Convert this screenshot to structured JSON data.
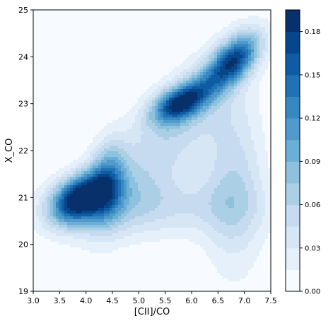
{
  "chart_data": {
    "type": "heatmap",
    "subtype": "kde-filled-contour",
    "xlabel": "[CII]/CO",
    "ylabel": "X_CO",
    "xlim": [
      3.0,
      7.5
    ],
    "ylim": [
      19,
      25
    ],
    "x_ticks": [
      "3.0",
      "3.5",
      "4.0",
      "4.5",
      "5.0",
      "5.5",
      "6.0",
      "6.5",
      "7.0",
      "7.5"
    ],
    "y_ticks": [
      "19",
      "20",
      "21",
      "22",
      "23",
      "24",
      "25"
    ],
    "colorbar": {
      "colormap": "Blues",
      "range": [
        0.0,
        0.195
      ],
      "tick_values": [
        0.0,
        0.03,
        0.06,
        0.09,
        0.12,
        0.15,
        0.18
      ],
      "tick_labels": [
        "0.00",
        "0.03",
        "0.06",
        "0.09",
        "0.12",
        "0.15",
        "0.18"
      ],
      "levels": 13
    },
    "peaks": [
      {
        "x": 3.87,
        "y": 20.97,
        "density": 0.19,
        "sx": 0.36,
        "sy": 0.36,
        "rho": 0.35
      },
      {
        "x": 4.4,
        "y": 21.3,
        "density": 0.1,
        "sx": 0.25,
        "sy": 0.6,
        "rho": 0.2
      },
      {
        "x": 5.75,
        "y": 23.0,
        "density": 0.14,
        "sx": 0.35,
        "sy": 0.28,
        "rho": 0.45
      },
      {
        "x": 6.85,
        "y": 24.0,
        "density": 0.12,
        "sx": 0.32,
        "sy": 0.38,
        "rho": 0.5
      },
      {
        "x": 6.4,
        "y": 23.5,
        "density": 0.07,
        "sx": 0.45,
        "sy": 0.45,
        "rho": 0.7
      },
      {
        "x": 5.5,
        "y": 22.2,
        "density": 0.055,
        "sx": 0.9,
        "sy": 1.2,
        "rho": 0.75
      },
      {
        "x": 6.8,
        "y": 21.3,
        "density": 0.055,
        "sx": 0.4,
        "sy": 1.3,
        "rho": 0.0
      },
      {
        "x": 5.2,
        "y": 20.8,
        "density": 0.045,
        "sx": 1.4,
        "sy": 0.45,
        "rho": 0.0
      }
    ],
    "grid": false,
    "legend": "colorbar-right"
  }
}
